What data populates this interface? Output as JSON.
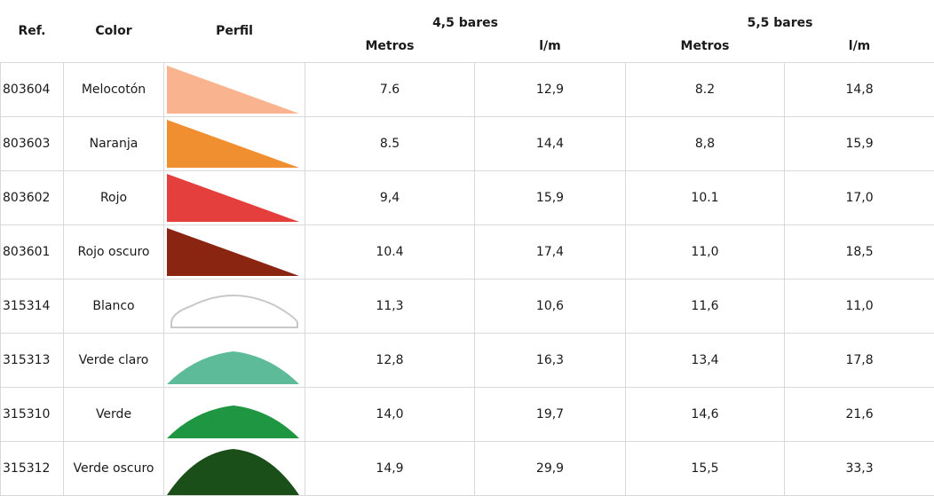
{
  "header": {
    "ref": "Ref.",
    "color": "Color",
    "profile": "Perfil",
    "group_a": "4,5 bares",
    "group_b": "5,5 bares",
    "meters_a": "Metros",
    "lpm_a": "l/m",
    "meters_b": "Metros",
    "lpm_b": "l/m"
  },
  "rows": [
    {
      "ref": "803604",
      "color": "Melocotón",
      "swatch": "#f9b48f",
      "shape": "triangle",
      "m45": "7.6",
      "l45": "12,9",
      "m55": "8.2",
      "l55": "14,8"
    },
    {
      "ref": "803603",
      "color": "Naranja",
      "swatch": "#f08f2f",
      "shape": "triangle",
      "m45": "8.5",
      "l45": "14,4",
      "m55": "8,8",
      "l55": "15,9"
    },
    {
      "ref": "803602",
      "color": "Rojo",
      "swatch": "#e43f3c",
      "shape": "triangle",
      "m45": "9,4",
      "l45": "15,9",
      "m55": "10.1",
      "l55": "17,0"
    },
    {
      "ref": "803601",
      "color": "Rojo oscuro",
      "swatch": "#8a2511",
      "shape": "triangle",
      "m45": "10.4",
      "l45": "17,4",
      "m55": "11,0",
      "l55": "18,5"
    },
    {
      "ref": "315314",
      "color": "Blanco",
      "swatch": "#ffffff",
      "shape": "arch-outline",
      "m45": "11,3",
      "l45": "10,6",
      "m55": "11,6",
      "l55": "11,0"
    },
    {
      "ref": "315313",
      "color": "Verde claro",
      "swatch": "#5dbb9a",
      "shape": "dome",
      "m45": "12,8",
      "l45": "16,3",
      "m55": "13,4",
      "l55": "17,8"
    },
    {
      "ref": "315310",
      "color": "Verde",
      "swatch": "#1f9642",
      "shape": "dome",
      "m45": "14,0",
      "l45": "19,7",
      "m55": "14,6",
      "l55": "21,6"
    },
    {
      "ref": "315312",
      "color": "Verde oscuro",
      "swatch": "#1a4f1a",
      "shape": "dome-tall",
      "m45": "14,9",
      "l45": "29,9",
      "m55": "15,5",
      "l55": "33,3"
    }
  ]
}
